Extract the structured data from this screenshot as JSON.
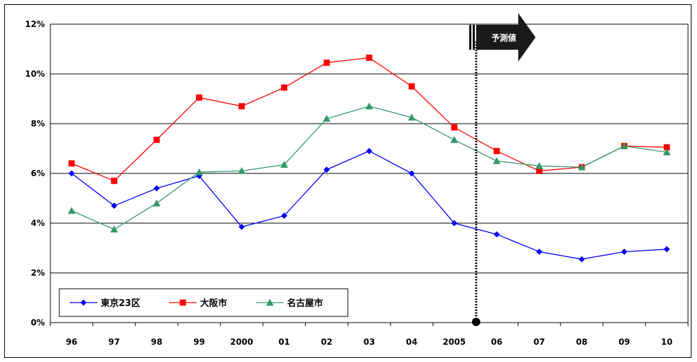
{
  "chart_data": {
    "type": "line",
    "title": "",
    "xlabel": "",
    "ylabel": "",
    "categories": [
      "96",
      "97",
      "98",
      "99",
      "2000",
      "01",
      "02",
      "03",
      "04",
      "2005",
      "06",
      "07",
      "08",
      "09",
      "10"
    ],
    "y_ticks": [
      "0%",
      "2%",
      "4%",
      "6%",
      "8%",
      "10%",
      "12%"
    ],
    "ylim": [
      0,
      12
    ],
    "grid": "horizontal",
    "legend_position": "bottom-left",
    "forecast_label": "予測値",
    "series": [
      {
        "name": "東京23区",
        "color": "#0000ff",
        "marker": "diamond",
        "values": [
          6.0,
          4.7,
          5.4,
          5.9,
          3.85,
          4.3,
          6.15,
          6.9,
          6.0,
          4.0,
          3.55,
          2.85,
          2.55,
          2.85,
          2.95
        ]
      },
      {
        "name": "大阪市",
        "color": "#ff0000",
        "marker": "square",
        "values": [
          6.4,
          5.7,
          7.35,
          9.05,
          8.7,
          9.45,
          10.45,
          10.65,
          9.5,
          7.85,
          6.9,
          6.1,
          6.25,
          7.1,
          7.05
        ]
      },
      {
        "name": "名古屋市",
        "color": "#339966",
        "marker": "triangle",
        "values": [
          4.5,
          3.75,
          4.8,
          6.05,
          6.1,
          6.35,
          8.2,
          8.7,
          8.25,
          7.35,
          6.5,
          6.3,
          6.25,
          7.1,
          6.85
        ]
      }
    ]
  }
}
